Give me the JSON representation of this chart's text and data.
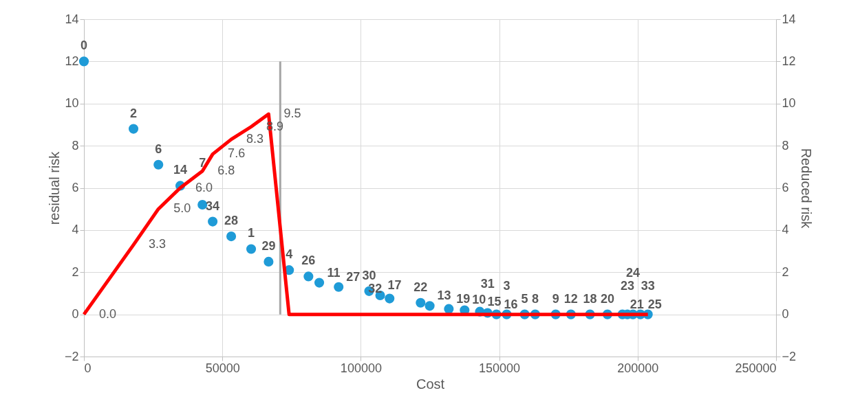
{
  "chart_data": {
    "type": "scatter",
    "xlabel": "Cost",
    "ylabel": "residual risk",
    "y2label": "Reduced risk",
    "xlim": [
      0,
      250000
    ],
    "xticks": [
      0,
      50000,
      100000,
      150000,
      200000,
      250000
    ],
    "ylim": [
      -2,
      14
    ],
    "yticks": [
      -2,
      0,
      2,
      4,
      6,
      8,
      10,
      12,
      14
    ],
    "y2lim": [
      -2,
      14
    ],
    "y2ticks": [
      -2,
      0,
      2,
      4,
      6,
      8,
      10,
      12,
      14
    ],
    "grid": true,
    "series": [
      {
        "marker": "circle",
        "color": "#1f9bd7",
        "x": [
          0,
          17900,
          26900,
          34800,
          42800,
          46500,
          53200,
          60400,
          66700,
          74100,
          81100,
          85000,
          92000,
          103000,
          107000,
          110400,
          121600,
          124900,
          131800,
          137500,
          143000,
          145800,
          149000,
          152700,
          159200,
          163000,
          170400,
          175900,
          182800,
          189100,
          194500,
          196300,
          198300,
          201000,
          203700
        ],
        "values": [
          12.0,
          8.8,
          7.1,
          6.1,
          5.2,
          4.4,
          3.7,
          3.1,
          2.5,
          2.1,
          1.8,
          1.5,
          1.3,
          1.1,
          0.9,
          0.75,
          0.55,
          0.4,
          0.26,
          0.2,
          0.13,
          0.07,
          0,
          0,
          0,
          0,
          0,
          0,
          0,
          0,
          0,
          0,
          0,
          0,
          0
        ]
      },
      {
        "type": "line",
        "color": "#a6a6a6",
        "x": [
          70900,
          70900
        ],
        "values": [
          0,
          12
        ]
      },
      {
        "type": "line",
        "axis": "y2",
        "color": "#ff0000",
        "x": [
          0,
          17900,
          26900,
          34800,
          42800,
          46500,
          53200,
          60400,
          66700,
          74100,
          203700
        ],
        "values": [
          0.0,
          3.3,
          5.0,
          6.0,
          6.8,
          7.6,
          8.3,
          8.9,
          9.5,
          0,
          0
        ],
        "value_labels": [
          "0.0",
          "3.3",
          "5.0",
          "6.0",
          "6.8",
          "7.6",
          "8.3",
          "8.9",
          "9.5",
          null,
          null
        ]
      }
    ],
    "annotations": [
      {
        "text": "0",
        "x": 0,
        "y": 12.0
      },
      {
        "text": "2",
        "x": 17900,
        "y": 8.8
      },
      {
        "text": "6",
        "x": 26900,
        "y": 7.1
      },
      {
        "text": "14",
        "x": 34800,
        "y": 6.1
      },
      {
        "text": "7",
        "x": 42800,
        "y": 5.2
      },
      {
        "text": "34",
        "x": 46500,
        "y": 4.4
      },
      {
        "text": "28",
        "x": 53200,
        "y": 3.7
      },
      {
        "text": "1",
        "x": 60400,
        "y": 3.1
      },
      {
        "text": "29",
        "x": 66700,
        "y": 2.5
      },
      {
        "text": "4",
        "x": 74100,
        "y": 2.1
      },
      {
        "text": "26",
        "x": 81100,
        "y": 1.8
      },
      {
        "text": "11",
        "x": 85000,
        "y": 1.5
      },
      {
        "text": "27",
        "x": 92000,
        "y": 1.3
      },
      {
        "text": "30",
        "x": 103000,
        "y": 1.1
      },
      {
        "text": "17",
        "x": 107000,
        "y": 0.9
      },
      {
        "text": "32",
        "x": 110400,
        "y": 0.75
      },
      {
        "text": "22",
        "x": 121600,
        "y": 0.55
      },
      {
        "text": "13",
        "x": 124900,
        "y": 0.4
      },
      {
        "text": "19",
        "x": 131800,
        "y": 0.26
      },
      {
        "text": "10",
        "x": 137500,
        "y": 0.2
      },
      {
        "text": "15",
        "x": 143000,
        "y": 0.13
      },
      {
        "text": "31",
        "x": 145800,
        "y": 0.07
      },
      {
        "text": "16",
        "x": 149000,
        "y": 0
      },
      {
        "text": "3",
        "x": 152700,
        "y": 0
      },
      {
        "text": "5",
        "x": 159200,
        "y": 0
      },
      {
        "text": "8",
        "x": 163000,
        "y": 0
      },
      {
        "text": "9",
        "x": 170400,
        "y": 0
      },
      {
        "text": "12",
        "x": 175900,
        "y": 0
      },
      {
        "text": "18",
        "x": 182800,
        "y": 0
      },
      {
        "text": "20",
        "x": 189100,
        "y": 0
      },
      {
        "text": "21",
        "x": 194500,
        "y": 0
      },
      {
        "text": "23",
        "x": 196300,
        "y": 0
      },
      {
        "text": "24",
        "x": 198300,
        "y": 0
      },
      {
        "text": "25",
        "x": 201000,
        "y": 0
      },
      {
        "text": "33",
        "x": 203700,
        "y": 0
      }
    ]
  }
}
